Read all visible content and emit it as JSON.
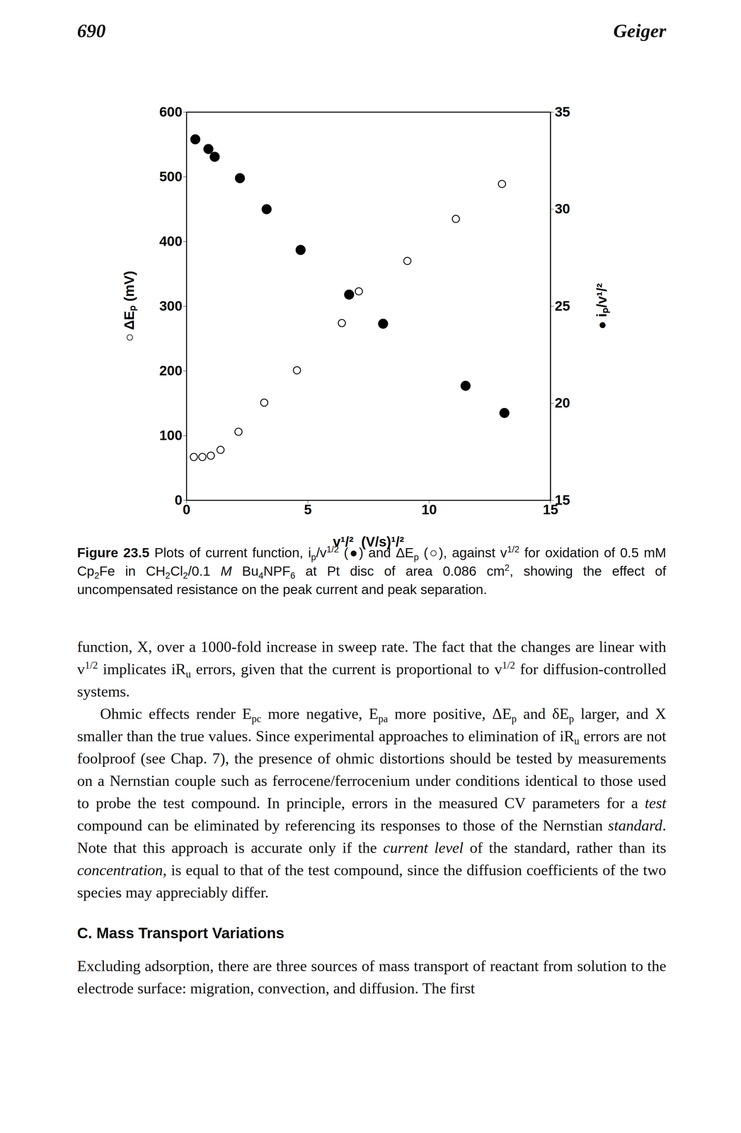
{
  "header": {
    "page": "690",
    "author": "Geiger"
  },
  "chart_data": {
    "type": "scatter",
    "xlabel": "v¹/²  (V/s)¹/²",
    "ylabel": "○ ΔEₚ (mV)",
    "y2label": "● iₚ/v¹/²",
    "xlim": [
      0,
      15
    ],
    "xticks": [
      0,
      5,
      10,
      15
    ],
    "ylim": [
      0,
      600
    ],
    "yticks": [
      0,
      100,
      200,
      300,
      400,
      500,
      600
    ],
    "y2lim": [
      15,
      35
    ],
    "y2ticks": [
      15,
      20,
      25,
      30,
      35
    ],
    "series": [
      {
        "marker": "open circle",
        "color": "#000000",
        "x": [
          0.3,
          0.65,
          1.0,
          1.4,
          2.14,
          3.2,
          4.55,
          6.4,
          7.1,
          8.1,
          9.1,
          11.1,
          13.0
        ],
        "values": [
          67,
          67,
          69,
          78,
          106,
          151,
          201,
          274,
          323,
          274,
          370,
          435,
          489
        ]
      },
      {
        "marker": "filled circle",
        "color": "#000000",
        "axis": "y2",
        "x": [
          0.36,
          0.9,
          1.16,
          2.2,
          3.3,
          4.7,
          6.7,
          8.1,
          11.5,
          13.1
        ],
        "values": [
          33.6,
          33.1,
          32.7,
          31.6,
          30.0,
          27.9,
          25.6,
          24.1,
          20.9,
          19.5
        ]
      }
    ]
  },
  "caption": [
    {
      "b": "Figure 23.5"
    },
    "  Plots of current function, i",
    {
      "sub": "p"
    },
    "/v",
    {
      "sup": "1/2"
    },
    " (●) and ΔE",
    {
      "sub": "p"
    },
    " (○), against v",
    {
      "sup": "1/2"
    },
    " for oxidation of 0.5 mM Cp",
    {
      "sub": "2"
    },
    "Fe in CH",
    {
      "sub": "2"
    },
    "Cl",
    {
      "sub": "2"
    },
    "/0.1 ",
    {
      "i": "M"
    },
    " Bu",
    {
      "sub": "4"
    },
    "NPF",
    {
      "sub": "6"
    },
    " at Pt disc of area 0.086 cm",
    {
      "sup": "2"
    },
    ", showing the effect of uncompensated resistance on the peak current and peak separation."
  ],
  "body": [
    {
      "indent": false,
      "runs": [
        "function, X, over a 1000-fold increase in sweep rate. The fact that the changes are linear with v",
        {
          "sup": "1/2"
        },
        " implicates iR",
        {
          "sub": "u"
        },
        " errors, given that the current is proportional to v",
        {
          "sup": "1/2"
        },
        " for diffusion-controlled systems."
      ]
    },
    {
      "indent": true,
      "runs": [
        "Ohmic effects render E",
        {
          "sub": "pc"
        },
        " more negative, E",
        {
          "sub": "pa"
        },
        " more positive, ΔE",
        {
          "sub": "p"
        },
        " and δE",
        {
          "sub": "p"
        },
        " larger, and X smaller than the true values. Since experimental approaches to elimination of iR",
        {
          "sub": "u"
        },
        " errors are not foolproof (see Chap. 7), the presence of ohmic distortions should be tested by measurements on a Nernstian couple such as ferrocene/ferrocenium under conditions identical to those used to probe the test compound. In principle, errors in the measured CV parameters for a ",
        {
          "i": "test"
        },
        " compound can be eliminated by referencing its responses to those of the Nernstian ",
        {
          "i": "standard"
        },
        ". Note that this approach is accurate only if the ",
        {
          "i": "current level"
        },
        " of the standard, rather than its ",
        {
          "i": "concentration"
        },
        ", is equal to that of the test compound, since the diffusion coefficients of the two species may appreciably differ."
      ]
    },
    {
      "heading": "C.  Mass Transport Variations"
    },
    {
      "indent": false,
      "runs": [
        "Excluding adsorption, there are three sources of mass transport of reactant from solution to the electrode surface: migration, convection, and diffusion. The first"
      ]
    }
  ]
}
